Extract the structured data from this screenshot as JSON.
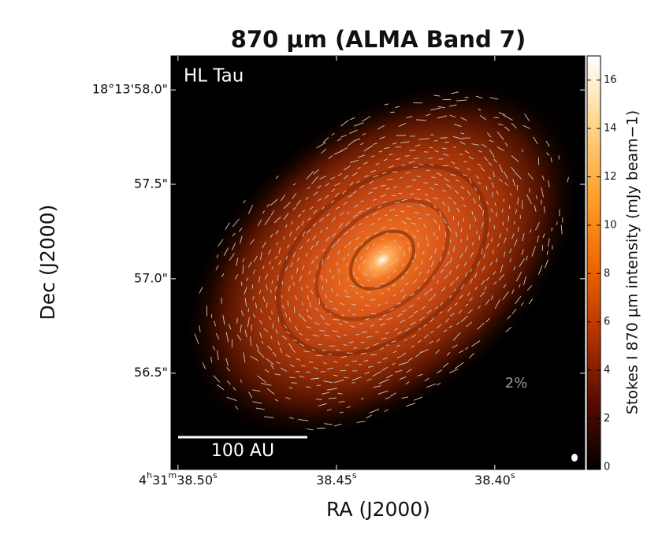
{
  "chart_data": {
    "type": "image",
    "title": "870 μm (ALMA Band 7)",
    "xlabel": "RA (J2000)",
    "ylabel": "Dec (J2000)",
    "source_label": "HL Tau",
    "scalebar_label": "100 AU",
    "vector_scale_label": "2%",
    "colorbar_label": "Stokes I 870 μm intensity (mJy beam−1)",
    "colormap": [
      "#000000",
      "#5a0c00",
      "#b83400",
      "#f06a00",
      "#ffa22e",
      "#ffd58a",
      "#ffffff"
    ],
    "xlim": [
      38.5022,
      38.3716
    ],
    "xticks": [
      {
        "value": 38.5,
        "label": "4h31m38.50s"
      },
      {
        "value": 38.45,
        "label": "38.45s"
      },
      {
        "value": 38.4,
        "label": "38.40s"
      }
    ],
    "ylim": [
      55.99,
      58.18
    ],
    "yticks": [
      {
        "value": 58.0,
        "label": "18°13'58.0\""
      },
      {
        "value": 57.5,
        "label": "57.5\""
      },
      {
        "value": 57.0,
        "label": "57.0\""
      },
      {
        "value": 56.5,
        "label": "56.5\""
      }
    ],
    "clim": [
      -0.1,
      17
    ],
    "cticks": [
      0,
      2,
      4,
      6,
      8,
      10,
      12,
      14,
      16
    ]
  }
}
